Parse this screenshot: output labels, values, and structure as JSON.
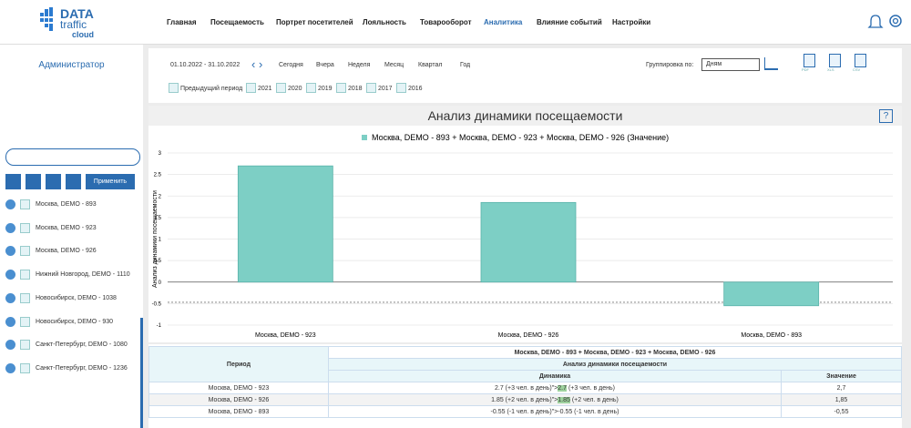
{
  "nav": {
    "logo": [
      "DATA",
      "traffic",
      "cloud"
    ],
    "items": [
      "Главная",
      "Посещаемость",
      "Портрет посетителей",
      "Лояльность",
      "Товарооборот",
      "Аналитика",
      "Влияние событий",
      "Настройки"
    ],
    "active": 5
  },
  "sidebar": {
    "user": "Администратор",
    "apply": "Применить",
    "items": [
      {
        "label": "Москва, DEMO - 893",
        "checked": true
      },
      {
        "label": "Москва, DEMO - 923",
        "checked": true
      },
      {
        "label": "Москва, DEMO - 926",
        "checked": true
      },
      {
        "label": "Нижний Новгород, DEMO - 1110",
        "checked": false
      },
      {
        "label": "Новосибирск, DEMO - 1038",
        "checked": false
      },
      {
        "label": "Новосибирск, DEMO - 930",
        "checked": false
      },
      {
        "label": "Санкт-Петербург, DEMO - 1080",
        "checked": false
      },
      {
        "label": "Санкт-Петербург, DEMO - 1236",
        "checked": false
      }
    ]
  },
  "toolbar": {
    "range": "01.10.2022 - 31.10.2022",
    "periods": [
      "Сегодня",
      "Вчера",
      "Неделя",
      "Месяц",
      "Квартал",
      "Год"
    ],
    "group_label": "Группировка по:",
    "group_value": "Дням",
    "exports": [
      "PDF",
      "XLS",
      "CSV"
    ],
    "compare": [
      "Предыдущий период",
      "2021",
      "2020",
      "2019",
      "2018",
      "2017",
      "2016"
    ]
  },
  "chart_data": {
    "type": "bar",
    "title": "Анализ динамики посещаемости",
    "help": "?",
    "legend": "Москва, DEMO - 893 + Москва, DEMO - 923 + Москва, DEMO - 926 (Значение)",
    "ylabel": "Анализ динамики посещаемости",
    "categories": [
      "Москва, DEMO - 923",
      "Москва, DEMO - 926",
      "Москва, DEMO - 893"
    ],
    "values": [
      2.7,
      1.85,
      -0.55
    ],
    "color": "#7dcfc5",
    "ylim": [
      -1,
      3
    ],
    "yticks": [
      -1,
      -0.5,
      0,
      0.5,
      1,
      1.5,
      2,
      2.5,
      3
    ],
    "grid": true,
    "dotted_line": -0.47
  },
  "table": {
    "title": "Москва, DEMO - 893 + Москва, DEMO - 923 + Москва, DEMO - 926",
    "period": "Период",
    "group": "Анализ динамики посещаемости",
    "col_dyn": "Динамика",
    "col_val": "Значение",
    "rows": [
      {
        "period": "Москва, DEMO - 923",
        "dynamics": [
          {
            "text": "2.7  (+3 чел. в день)\">"
          },
          {
            "text": "2.7",
            "highlight": true
          },
          {
            "text": " (+3 чел. в день)"
          }
        ],
        "value": "2,7"
      },
      {
        "period": "Москва, DEMO - 926",
        "dynamics": [
          {
            "text": "1.85  (+2 чел. в день)\">"
          },
          {
            "text": "1.85",
            "highlight": true
          },
          {
            "text": " (+2 чел. в день)"
          }
        ],
        "value": "1,85"
      },
      {
        "period": "Москва, DEMO - 893",
        "dynamics": [
          {
            "text": "-0.55  (-1 чел. в день)\">-0.55  (-1 чел. в день)"
          }
        ],
        "value": "-0,55"
      }
    ]
  }
}
